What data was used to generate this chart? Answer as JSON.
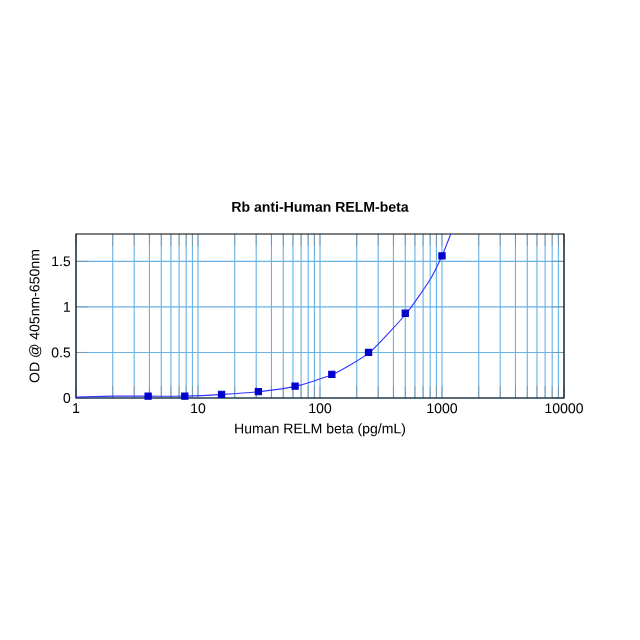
{
  "chart_data": {
    "type": "scatter",
    "title": "Rb anti-Human RELM-beta",
    "xlabel": "Human RELM beta (pg/mL)",
    "ylabel": "OD @ 405nm-650nm",
    "log": "x",
    "grid": true,
    "marker": "square",
    "xlim": [
      1,
      10000
    ],
    "xticks": [
      1,
      {
        "value": 2,
        "label": null
      },
      {
        "value": 3,
        "label": null
      },
      {
        "value": 4,
        "label": null
      },
      {
        "value": 5,
        "label": null
      },
      {
        "value": 6,
        "label": null
      },
      {
        "value": 7,
        "label": null
      },
      {
        "value": 8,
        "label": null
      },
      {
        "value": 9,
        "label": null
      },
      10,
      {
        "value": 20,
        "label": null
      },
      {
        "value": 30,
        "label": null
      },
      {
        "value": 40,
        "label": null
      },
      {
        "value": 50,
        "label": null
      },
      {
        "value": 60,
        "label": null
      },
      {
        "value": 70,
        "label": null
      },
      {
        "value": 80,
        "label": null
      },
      {
        "value": 90,
        "label": null
      },
      100,
      {
        "value": 200,
        "label": null
      },
      {
        "value": 300,
        "label": null
      },
      {
        "value": 400,
        "label": null
      },
      {
        "value": 500,
        "label": null
      },
      {
        "value": 600,
        "label": null
      },
      {
        "value": 700,
        "label": null
      },
      {
        "value": 800,
        "label": null
      },
      {
        "value": 900,
        "label": null
      },
      1000,
      {
        "value": 2000,
        "label": null
      },
      {
        "value": 3000,
        "label": null
      },
      {
        "value": 4000,
        "label": null
      },
      {
        "value": 5000,
        "label": null
      },
      {
        "value": 6000,
        "label": null
      },
      {
        "value": 7000,
        "label": null
      },
      {
        "value": 8000,
        "label": null
      },
      {
        "value": 9000,
        "label": null
      },
      10000
    ],
    "ylim": [
      0,
      1.8
    ],
    "yticks": [
      0,
      0.5,
      1,
      1.5
    ],
    "series": [
      {
        "color": "#0000cc",
        "x": [
          3.9,
          7.8,
          15.6,
          31.25,
          62.5,
          125,
          250,
          500,
          1000
        ],
        "values": [
          0.02,
          0.02,
          0.04,
          0.07,
          0.13,
          0.26,
          0.5,
          0.93,
          1.56
        ]
      },
      {
        "type": "line",
        "color": "#3333ff",
        "marker": "none",
        "x": [
          1,
          2,
          4,
          8,
          16,
          32,
          64,
          128,
          256,
          512,
          800,
          1000,
          1180
        ],
        "values": [
          0.01,
          0.02,
          0.02,
          0.02,
          0.04,
          0.07,
          0.13,
          0.26,
          0.5,
          0.93,
          1.3,
          1.56,
          1.8
        ]
      }
    ]
  }
}
